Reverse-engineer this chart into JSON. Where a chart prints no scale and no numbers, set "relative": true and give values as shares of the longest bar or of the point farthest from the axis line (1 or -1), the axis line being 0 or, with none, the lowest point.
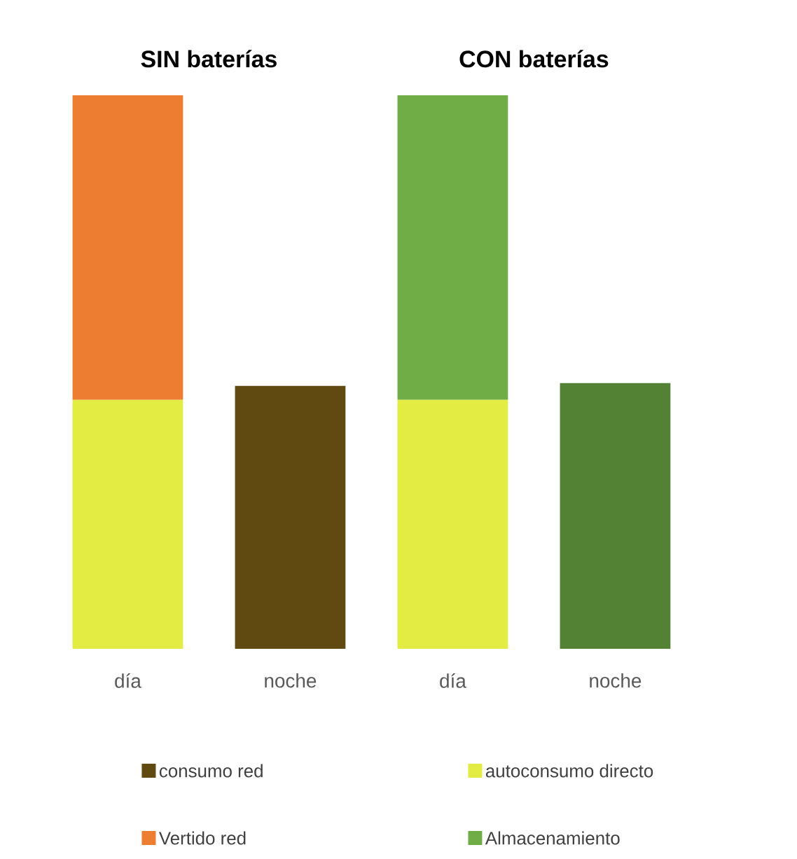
{
  "chart_data": {
    "type": "bar",
    "relative": true,
    "stacked": true,
    "categories": [
      "día",
      "noche",
      "día",
      "noche"
    ],
    "annotations": [
      "SIN baterías",
      "CON baterías"
    ],
    "legend": "bottom",
    "series": [
      {
        "name": "consumo red",
        "color": "#614a12",
        "values": [
          null,
          0.475,
          null,
          null
        ]
      },
      {
        "name": "autoconsumo directo",
        "color": "#e2ec42",
        "values": [
          0.45,
          null,
          0.45,
          null
        ]
      },
      {
        "name": "Vertido red",
        "color": "#ed7d31",
        "values": [
          0.55,
          null,
          null,
          null
        ]
      },
      {
        "name": "Almacenamiento",
        "color": "#70ad47",
        "colors": [
          null,
          null,
          "#70ad47",
          "#548235"
        ],
        "values": [
          null,
          null,
          0.55,
          0.48
        ]
      }
    ]
  }
}
